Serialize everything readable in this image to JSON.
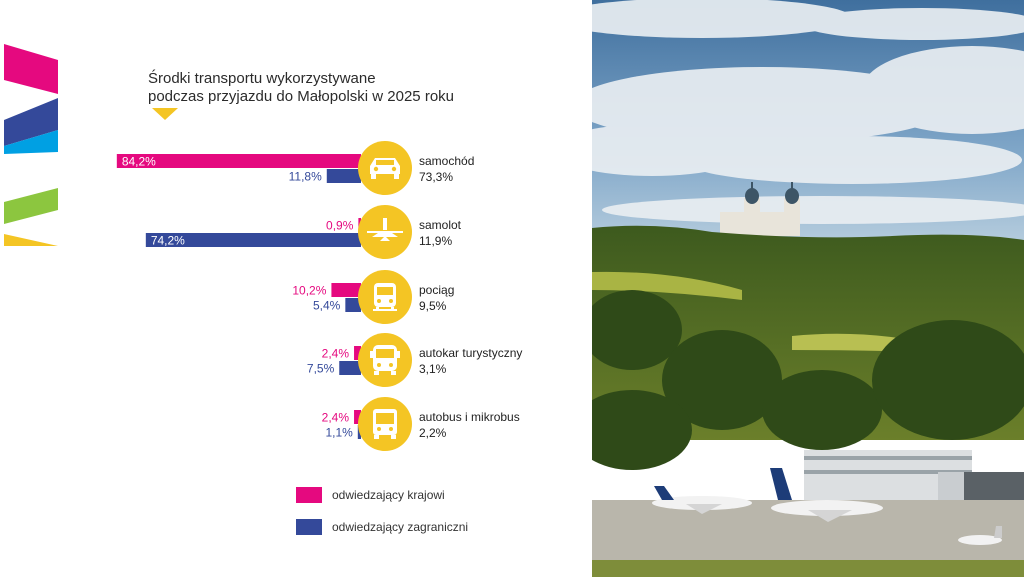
{
  "chart_data": {
    "type": "bar",
    "title": "Środki transportu wykorzystywane podczas przyjazdu do Małopolski w 2025 roku",
    "title_lines": [
      "Środki transportu wykorzystywane",
      "podczas przyjazdu do Małopolski w 2025 roku"
    ],
    "categories": [
      "samochód",
      "samolot",
      "pociąg",
      "autokar turystyczny",
      "autobus i mikrobus"
    ],
    "totals": [
      73.3,
      11.9,
      9.5,
      3.1,
      2.2
    ],
    "total_labels": [
      "73,3%",
      "11,9%",
      "9,5%",
      "3,1%",
      "2,2%"
    ],
    "icons": [
      "car-icon",
      "plane-icon",
      "train-icon",
      "coach-icon",
      "bus-icon"
    ],
    "series": [
      {
        "name": "odwiedzający krajowi",
        "color": "#e5097f",
        "values": [
          84.2,
          0.9,
          10.2,
          2.4,
          2.4
        ],
        "labels": [
          "84,2%",
          "0,9%",
          "10,2%",
          "2,4%",
          "2,4%"
        ]
      },
      {
        "name": "odwiedzający zagraniczni",
        "color": "#34499a",
        "values": [
          11.8,
          74.2,
          5.4,
          7.5,
          1.1
        ],
        "labels": [
          "11,8%",
          "74,2%",
          "5,4%",
          "7,5%",
          "1,1%"
        ]
      }
    ],
    "grid": false,
    "legend_position": "bottom"
  },
  "colors": {
    "accent_yellow": "#f4c524",
    "magenta": "#e5097f",
    "navy": "#34499a",
    "cyan": "#00a0e3",
    "green": "#8cc63f"
  }
}
